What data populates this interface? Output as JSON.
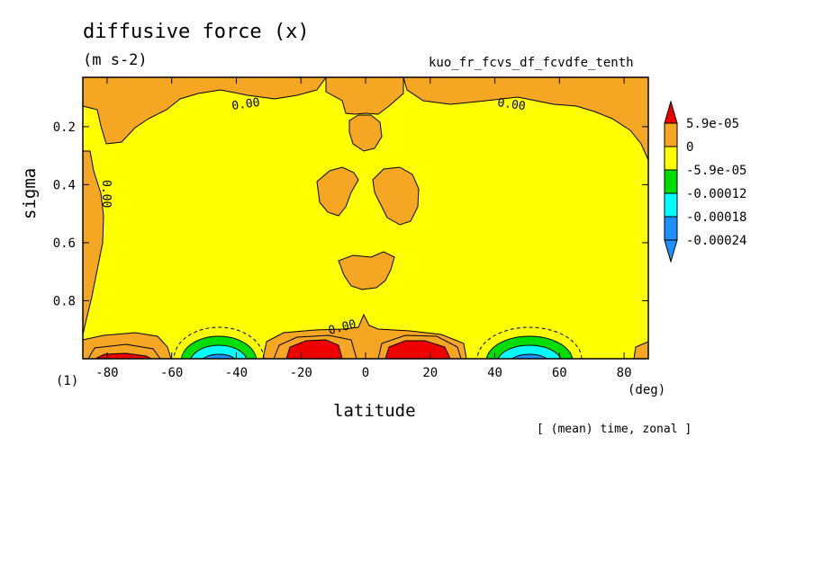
{
  "chart_data": {
    "type": "contour",
    "title": "diffusive force (x)",
    "units": "(m s-2)",
    "run_name": "kuo_fr_fcvs_df_fcvdfe_tenth",
    "xlabel": "latitude",
    "x_unit": "(deg)",
    "ylabel": "sigma",
    "y_unit": "(1)",
    "footnote": "[ (mean) time, zonal ]",
    "xlim": [
      -87.5,
      87.5
    ],
    "ylim": [
      1.0,
      0.03
    ],
    "x_ticks": [
      "-80",
      "-60",
      "-40",
      "-20",
      "0",
      "20",
      "40",
      "60",
      "80"
    ],
    "x_tick_values": [
      -80,
      -60,
      -40,
      -20,
      0,
      20,
      40,
      60,
      80
    ],
    "y_ticks": [
      "0.2",
      "0.4",
      "0.6",
      "0.8"
    ],
    "y_tick_values": [
      0.2,
      0.4,
      0.6,
      0.8
    ],
    "contour_labels": [
      "0.00",
      "0.00",
      "0.00",
      "0.00"
    ],
    "colorbar": {
      "labels": [
        "5.9e-05",
        "0",
        "-5.9e-05",
        "-0.00012",
        "-0.00018",
        "-0.00024"
      ],
      "colors": [
        "#ee0000",
        "#f5a623",
        "#ffff00",
        "#00dd00",
        "#00ffff",
        "#1e90ff",
        "#1e90ff"
      ]
    }
  }
}
